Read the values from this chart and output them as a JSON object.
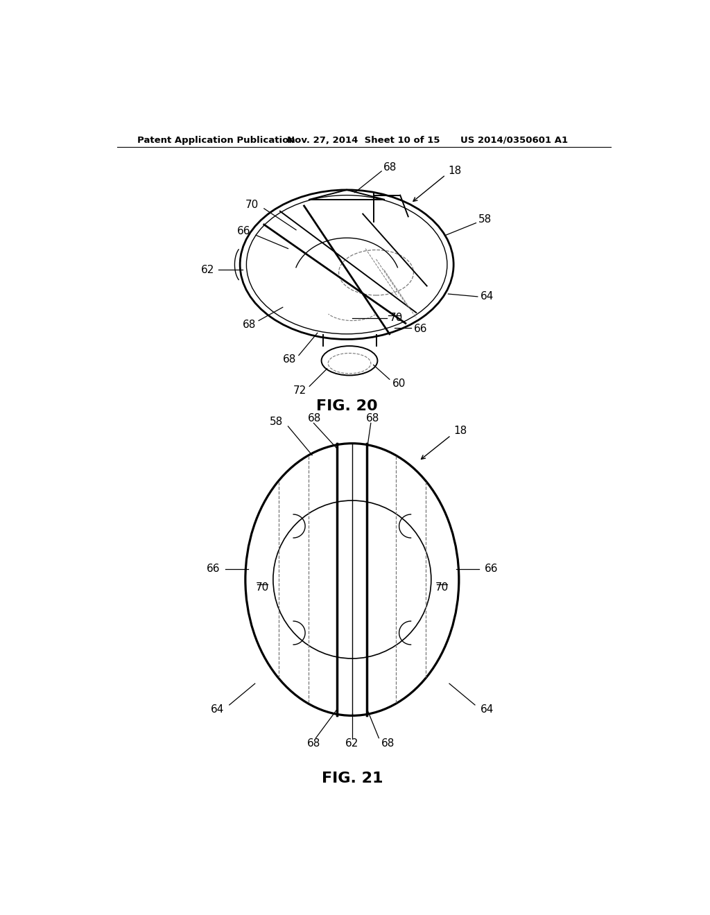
{
  "bg_color": "#ffffff",
  "line_color": "#000000",
  "dashed_color": "#777777",
  "header_text": "Patent Application Publication",
  "header_date": "Nov. 27, 2014  Sheet 10 of 15",
  "header_patent": "US 2014/0350601 A1",
  "fig20_label": "FIG. 20",
  "fig21_label": "FIG. 21"
}
